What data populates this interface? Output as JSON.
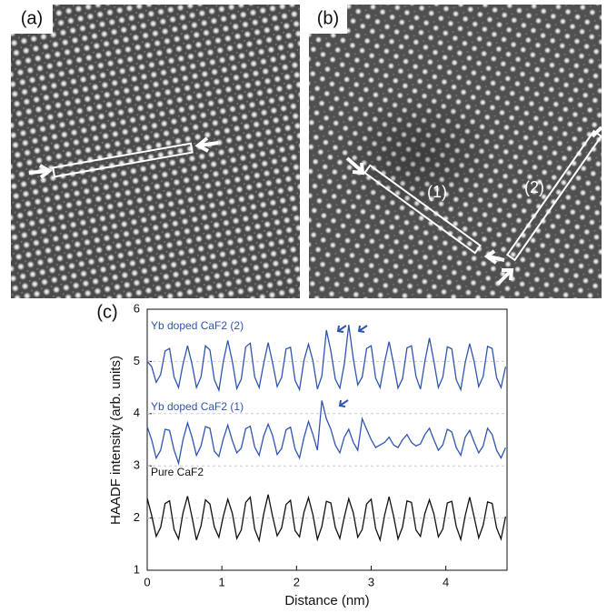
{
  "panels": {
    "a": {
      "label": "(a)"
    },
    "b": {
      "label": "(b)",
      "annotations": [
        "(1)",
        "(2)"
      ]
    },
    "c": {
      "label": "(c)"
    }
  },
  "chart_data": {
    "type": "line",
    "x_label": "Distance (nm)",
    "y_label": "HAADF intensity (arb. units)",
    "xlim": [
      0,
      4.82
    ],
    "xticks": [
      0,
      1,
      2,
      3,
      4
    ],
    "ylim": [
      1,
      6
    ],
    "yticks": [
      1,
      2,
      3,
      4,
      5,
      6
    ],
    "grid": true,
    "x": [
      0,
      0.06,
      0.12,
      0.18,
      0.24,
      0.3,
      0.36,
      0.42,
      0.48,
      0.54,
      0.6,
      0.66,
      0.72,
      0.78,
      0.84,
      0.9,
      0.96,
      1.02,
      1.08,
      1.14,
      1.2,
      1.26,
      1.32,
      1.38,
      1.44,
      1.5,
      1.56,
      1.62,
      1.68,
      1.74,
      1.8,
      1.86,
      1.92,
      1.98,
      2.04,
      2.1,
      2.16,
      2.22,
      2.28,
      2.34,
      2.4,
      2.46,
      2.52,
      2.58,
      2.64,
      2.7,
      2.76,
      2.82,
      2.88,
      2.94,
      3,
      3.06,
      3.12,
      3.18,
      3.24,
      3.3,
      3.36,
      3.42,
      3.48,
      3.54,
      3.6,
      3.66,
      3.72,
      3.78,
      3.84,
      3.9,
      3.96,
      4.02,
      4.08,
      4.14,
      4.2,
      4.26,
      4.32,
      4.38,
      4.44,
      4.5,
      4.56,
      4.62,
      4.68,
      4.74,
      4.8
    ],
    "series": [
      {
        "name": "Yb doped CaF2 (2)",
        "color": "#2f55b0",
        "values": [
          5.0,
          4.9,
          4.6,
          4.75,
          5.2,
          5.25,
          4.7,
          4.5,
          4.95,
          5.3,
          4.95,
          4.5,
          4.7,
          5.3,
          5.22,
          4.65,
          4.45,
          5.0,
          5.4,
          5.0,
          4.48,
          4.66,
          5.28,
          5.35,
          4.7,
          4.5,
          4.96,
          5.36,
          4.97,
          4.52,
          4.69,
          5.24,
          5.27,
          4.64,
          4.46,
          5.02,
          5.33,
          5.01,
          4.47,
          4.72,
          5.6,
          5.2,
          4.66,
          4.49,
          4.95,
          5.7,
          5.05,
          4.55,
          4.7,
          5.25,
          5.3,
          4.68,
          4.5,
          4.99,
          5.38,
          4.96,
          4.49,
          4.67,
          5.26,
          5.3,
          4.71,
          4.47,
          5.0,
          5.45,
          5.0,
          4.5,
          4.7,
          5.28,
          5.24,
          4.65,
          4.46,
          4.98,
          5.34,
          4.99,
          4.52,
          4.71,
          5.29,
          5.25,
          4.69,
          4.5,
          4.9
        ]
      },
      {
        "name": "Yb doped CaF2 (1)",
        "color": "#2f55b0",
        "values": [
          3.75,
          3.5,
          3.15,
          3.3,
          3.7,
          3.68,
          3.3,
          3.05,
          3.5,
          3.82,
          3.55,
          3.2,
          3.38,
          3.75,
          3.72,
          3.28,
          3.18,
          3.52,
          3.78,
          3.48,
          3.25,
          3.34,
          3.71,
          3.76,
          3.36,
          3.2,
          3.57,
          3.8,
          3.58,
          3.22,
          3.33,
          3.69,
          3.74,
          3.32,
          3.15,
          3.54,
          3.85,
          3.6,
          3.3,
          4.25,
          3.9,
          3.7,
          3.4,
          3.25,
          3.55,
          3.7,
          3.45,
          3.3,
          3.9,
          3.7,
          3.5,
          3.35,
          3.4,
          3.45,
          3.55,
          3.4,
          3.35,
          3.5,
          3.6,
          3.45,
          3.38,
          3.42,
          3.6,
          3.72,
          3.5,
          3.3,
          3.4,
          3.7,
          3.65,
          3.35,
          3.2,
          3.55,
          3.68,
          3.45,
          3.25,
          3.38,
          3.72,
          3.6,
          3.3,
          3.15,
          3.35
        ]
      },
      {
        "name": "Pure CaF2",
        "color": "#111111",
        "values": [
          2.38,
          2.05,
          1.65,
          1.82,
          2.28,
          2.33,
          1.78,
          1.6,
          2.1,
          2.42,
          2.02,
          1.58,
          1.85,
          2.35,
          2.27,
          1.83,
          1.63,
          2.04,
          2.36,
          2.09,
          1.61,
          1.77,
          2.3,
          2.4,
          1.79,
          1.57,
          2.08,
          2.45,
          2.03,
          1.66,
          1.81,
          2.26,
          2.34,
          1.76,
          1.64,
          2.11,
          2.39,
          2.06,
          1.59,
          1.84,
          2.32,
          2.29,
          1.82,
          1.61,
          2.02,
          2.37,
          2.1,
          1.63,
          1.78,
          2.27,
          2.36,
          1.8,
          1.58,
          2.06,
          2.41,
          2.04,
          1.6,
          1.83,
          2.33,
          2.3,
          1.77,
          1.65,
          2.09,
          2.35,
          2.08,
          1.64,
          1.79,
          2.29,
          2.32,
          1.84,
          1.59,
          2.05,
          2.4,
          2.01,
          1.62,
          1.86,
          2.31,
          2.28,
          1.81,
          1.6,
          2.03
        ]
      }
    ]
  }
}
